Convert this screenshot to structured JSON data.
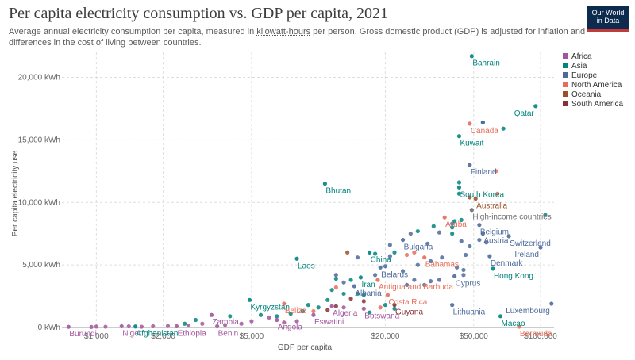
{
  "title": "Per capita electricity consumption vs. GDP per capita, 2021",
  "subtitle_parts": [
    "Average annual electricity consumption per capita, measured in ",
    "kilowatt-hours",
    " per person. Gross domestic product (GDP) is adjusted for inflation and differences in the cost of living between countries."
  ],
  "logo": [
    "Our World",
    "in Data"
  ],
  "colors": {
    "Africa": "#a2559c",
    "Asia": "#00847e",
    "Europe": "#4c6a9c",
    "North America": "#e56e5a",
    "Oceania": "#9a5129",
    "South America": "#883039",
    "Other": "#6e6e6e"
  },
  "chart_data": {
    "type": "scatter",
    "x_scale": "log",
    "xlabel": "GDP per capita",
    "ylabel": "Per capita electricity use",
    "xlim": [
      700,
      115000
    ],
    "ylim": [
      0,
      22000
    ],
    "x_ticks": [
      1000,
      2000,
      5000,
      20000,
      50000,
      100000
    ],
    "x_tick_labels": [
      "$1,000",
      "$2,000",
      "$5,000",
      "$20,000",
      "$50,000",
      "$100,000"
    ],
    "y_ticks": [
      0,
      5000,
      10000,
      15000,
      20000
    ],
    "y_tick_labels": [
      "0 kWh",
      "5,000 kWh",
      "10,000 kWh",
      "15,000 kWh",
      "20,000 kWh"
    ],
    "legend": [
      "Africa",
      "Asia",
      "Europe",
      "North America",
      "Oceania",
      "South America"
    ],
    "legend_position": "right",
    "grid": true,
    "labeled_points": [
      {
        "label": "Bahrain",
        "region": "Asia",
        "x": 49000,
        "y": 21700
      },
      {
        "label": "Qatar",
        "region": "Asia",
        "x": 95000,
        "y": 17700
      },
      {
        "label": "Canada",
        "region": "North America",
        "x": 48000,
        "y": 16300
      },
      {
        "label": "Kuwait",
        "region": "Asia",
        "x": 43000,
        "y": 15300
      },
      {
        "label": "Finland",
        "region": "Europe",
        "x": 48000,
        "y": 13000
      },
      {
        "label": "Bhutan",
        "region": "Asia",
        "x": 10700,
        "y": 11500
      },
      {
        "label": "South Korea",
        "region": "Asia",
        "x": 43000,
        "y": 11200
      },
      {
        "label": "Australia",
        "region": "Oceania",
        "x": 51000,
        "y": 10300
      },
      {
        "label": "High-income countries",
        "region": "Other",
        "x": 49000,
        "y": 9400
      },
      {
        "label": "Aruba",
        "region": "North America",
        "x": 37000,
        "y": 8800
      },
      {
        "label": "Belgium",
        "region": "Europe",
        "x": 53000,
        "y": 8200
      },
      {
        "label": "Bulgaria",
        "region": "Europe",
        "x": 24000,
        "y": 7000
      },
      {
        "label": "Austria",
        "region": "Europe",
        "x": 55000,
        "y": 7500
      },
      {
        "label": "Switzerland",
        "region": "Europe",
        "x": 72000,
        "y": 7300
      },
      {
        "label": "Ireland",
        "region": "Europe",
        "x": 100000,
        "y": 6400
      },
      {
        "label": "China",
        "region": "Asia",
        "x": 17000,
        "y": 6000
      },
      {
        "label": "Laos",
        "region": "Asia",
        "x": 8000,
        "y": 5500
      },
      {
        "label": "Denmark",
        "region": "Europe",
        "x": 59000,
        "y": 5700
      },
      {
        "label": "Bahamas",
        "region": "North America",
        "x": 30000,
        "y": 5600
      },
      {
        "label": "Belarus",
        "region": "Europe",
        "x": 19000,
        "y": 4800
      },
      {
        "label": "Hong Kong",
        "region": "Asia",
        "x": 61000,
        "y": 4700
      },
      {
        "label": "Cyprus",
        "region": "Europe",
        "x": 41000,
        "y": 4100
      },
      {
        "label": "Iran",
        "region": "Asia",
        "x": 15500,
        "y": 4000
      },
      {
        "label": "Antigua and Barbuda",
        "region": "North America",
        "x": 18500,
        "y": 3800
      },
      {
        "label": "Albania",
        "region": "Europe",
        "x": 14500,
        "y": 3300
      },
      {
        "label": "Kyrgyzstan",
        "region": "Asia",
        "x": 4900,
        "y": 2200
      },
      {
        "label": "Costa Rica",
        "region": "North America",
        "x": 20500,
        "y": 2600
      },
      {
        "label": "Luxembourg",
        "region": "Europe",
        "x": 112000,
        "y": 1900
      },
      {
        "label": "Guyana",
        "region": "South America",
        "x": 22000,
        "y": 1800
      },
      {
        "label": "Belize",
        "region": "North America",
        "x": 7000,
        "y": 1900
      },
      {
        "label": "Algeria",
        "region": "Africa",
        "x": 11500,
        "y": 1700
      },
      {
        "label": "Lithuania",
        "region": "Europe",
        "x": 40000,
        "y": 1800
      },
      {
        "label": "Zambia",
        "region": "Africa",
        "x": 3300,
        "y": 1000
      },
      {
        "label": "Botswana",
        "region": "Africa",
        "x": 16000,
        "y": 1500
      },
      {
        "label": "Macao",
        "region": "Asia",
        "x": 66000,
        "y": 900
      },
      {
        "label": "Eswatini",
        "region": "Africa",
        "x": 9500,
        "y": 1000
      },
      {
        "label": "Angola",
        "region": "Africa",
        "x": 6500,
        "y": 600
      },
      {
        "label": "Burundi",
        "region": "Africa",
        "x": 750,
        "y": 50
      },
      {
        "label": "Niger",
        "region": "Africa",
        "x": 1300,
        "y": 100
      },
      {
        "label": "Afghanistan",
        "region": "Asia",
        "x": 1500,
        "y": 80
      },
      {
        "label": "Ethiopia",
        "region": "Africa",
        "x": 2300,
        "y": 100
      },
      {
        "label": "Benin",
        "region": "Africa",
        "x": 3500,
        "y": 100
      },
      {
        "label": "Bermuda",
        "region": "North America",
        "x": 80000,
        "y": 60
      }
    ],
    "unlabeled_points": [
      {
        "region": "Asia",
        "x": 55000,
        "y": 16400
      },
      {
        "region": "Asia",
        "x": 68000,
        "y": 15900
      },
      {
        "region": "Europe",
        "x": 55000,
        "y": 16400
      },
      {
        "region": "North America",
        "x": 63000,
        "y": 12500
      },
      {
        "region": "Asia",
        "x": 43000,
        "y": 11600
      },
      {
        "region": "Asia",
        "x": 43000,
        "y": 10700
      },
      {
        "region": "Oceania",
        "x": 48000,
        "y": 10400
      },
      {
        "region": "North America",
        "x": 64000,
        "y": 10700
      },
      {
        "region": "Asia",
        "x": 105000,
        "y": 9000
      },
      {
        "region": "Asia",
        "x": 41000,
        "y": 8500
      },
      {
        "region": "Asia",
        "x": 44000,
        "y": 8600
      },
      {
        "region": "Europe",
        "x": 40000,
        "y": 8300
      },
      {
        "region": "Asia",
        "x": 40000,
        "y": 8000
      },
      {
        "region": "Asia",
        "x": 40000,
        "y": 7500
      },
      {
        "region": "Europe",
        "x": 35000,
        "y": 7600
      },
      {
        "region": "Asia",
        "x": 33000,
        "y": 8100
      },
      {
        "region": "Asia",
        "x": 28000,
        "y": 7700
      },
      {
        "region": "Europe",
        "x": 26000,
        "y": 7500
      },
      {
        "region": "Europe",
        "x": 31000,
        "y": 6700
      },
      {
        "region": "Europe",
        "x": 44000,
        "y": 6900
      },
      {
        "region": "Europe",
        "x": 48000,
        "y": 6500
      },
      {
        "region": "Europe",
        "x": 53000,
        "y": 7000
      },
      {
        "region": "Europe",
        "x": 57000,
        "y": 6800
      },
      {
        "region": "Europe",
        "x": 46000,
        "y": 5800
      },
      {
        "region": "Europe",
        "x": 21000,
        "y": 6600
      },
      {
        "region": "Asia",
        "x": 22000,
        "y": 6000
      },
      {
        "region": "Asia",
        "x": 18000,
        "y": 5900
      },
      {
        "region": "Europe",
        "x": 21000,
        "y": 5700
      },
      {
        "region": "North America",
        "x": 25000,
        "y": 5800
      },
      {
        "region": "North America",
        "x": 27000,
        "y": 6000
      },
      {
        "region": "Oceania",
        "x": 13500,
        "y": 6000
      },
      {
        "region": "Europe",
        "x": 15000,
        "y": 5600
      },
      {
        "region": "Europe",
        "x": 28000,
        "y": 5000
      },
      {
        "region": "Europe",
        "x": 32000,
        "y": 5300
      },
      {
        "region": "Europe",
        "x": 36000,
        "y": 5600
      },
      {
        "region": "Europe",
        "x": 42000,
        "y": 4800
      },
      {
        "region": "Europe",
        "x": 45000,
        "y": 4600
      },
      {
        "region": "Europe",
        "x": 24000,
        "y": 4500
      },
      {
        "region": "Europe",
        "x": 20000,
        "y": 4900
      },
      {
        "region": "Europe",
        "x": 18000,
        "y": 4200
      },
      {
        "region": "Asia",
        "x": 14000,
        "y": 3800
      },
      {
        "region": "Asia",
        "x": 12000,
        "y": 3900
      },
      {
        "region": "Europe",
        "x": 13000,
        "y": 3600
      },
      {
        "region": "Europe",
        "x": 12000,
        "y": 4200
      },
      {
        "region": "North America",
        "x": 12000,
        "y": 3200
      },
      {
        "region": "Asia",
        "x": 11500,
        "y": 3000
      },
      {
        "region": "Asia",
        "x": 13000,
        "y": 2700
      },
      {
        "region": "Asia",
        "x": 15000,
        "y": 2700
      },
      {
        "region": "Asia",
        "x": 16000,
        "y": 2600
      },
      {
        "region": "Europe",
        "x": 25000,
        "y": 3400
      },
      {
        "region": "Europe",
        "x": 27000,
        "y": 3800
      },
      {
        "region": "Europe",
        "x": 30000,
        "y": 3400
      },
      {
        "region": "Europe",
        "x": 32000,
        "y": 3700
      },
      {
        "region": "South America",
        "x": 14000,
        "y": 2300
      },
      {
        "region": "South America",
        "x": 16000,
        "y": 2100
      },
      {
        "region": "Asia",
        "x": 11000,
        "y": 2200
      },
      {
        "region": "Asia",
        "x": 10000,
        "y": 1600
      },
      {
        "region": "Asia",
        "x": 9000,
        "y": 1800
      },
      {
        "region": "Asia",
        "x": 8500,
        "y": 1300
      },
      {
        "region": "Asia",
        "x": 7500,
        "y": 1100
      },
      {
        "region": "Asia",
        "x": 6500,
        "y": 900
      },
      {
        "region": "North America",
        "x": 9500,
        "y": 1300
      },
      {
        "region": "South America",
        "x": 11000,
        "y": 1400
      },
      {
        "region": "South America",
        "x": 12000,
        "y": 1700
      },
      {
        "region": "Africa",
        "x": 13000,
        "y": 1600
      },
      {
        "region": "Africa",
        "x": 6000,
        "y": 800
      },
      {
        "region": "Africa",
        "x": 5000,
        "y": 500
      },
      {
        "region": "Africa",
        "x": 4500,
        "y": 300
      },
      {
        "region": "Asia",
        "x": 5500,
        "y": 1000
      },
      {
        "region": "Asia",
        "x": 4000,
        "y": 900
      },
      {
        "region": "Africa",
        "x": 3800,
        "y": 200
      },
      {
        "region": "Africa",
        "x": 3000,
        "y": 300
      },
      {
        "region": "Africa",
        "x": 2600,
        "y": 150
      },
      {
        "region": "Africa",
        "x": 2100,
        "y": 120
      },
      {
        "region": "Africa",
        "x": 1800,
        "y": 100
      },
      {
        "region": "Africa",
        "x": 1600,
        "y": 60
      },
      {
        "region": "Africa",
        "x": 1400,
        "y": 90
      },
      {
        "region": "Africa",
        "x": 1100,
        "y": 60
      },
      {
        "region": "Africa",
        "x": 1000,
        "y": 70
      },
      {
        "region": "Africa",
        "x": 950,
        "y": 40
      },
      {
        "region": "Asia",
        "x": 2800,
        "y": 600
      },
      {
        "region": "Asia",
        "x": 2500,
        "y": 300
      },
      {
        "region": "Africa",
        "x": 7000,
        "y": 400
      },
      {
        "region": "Africa",
        "x": 8000,
        "y": 500
      },
      {
        "region": "Europe",
        "x": 45000,
        "y": 4200
      },
      {
        "region": "Europe",
        "x": 35000,
        "y": 3800
      },
      {
        "region": "Asia",
        "x": 20000,
        "y": 1800
      },
      {
        "region": "North America",
        "x": 19000,
        "y": 1600
      },
      {
        "region": "Asia",
        "x": 17000,
        "y": 1200
      },
      {
        "region": "Asia",
        "x": 22000,
        "y": 1500
      }
    ]
  }
}
